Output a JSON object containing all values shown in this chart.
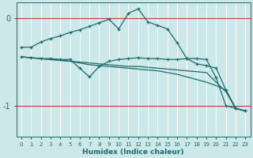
{
  "xlabel": "Humidex (Indice chaleur)",
  "xlim": [
    -0.5,
    23.5
  ],
  "ylim": [
    -1.35,
    0.18
  ],
  "background_color": "#cce8e8",
  "grid_color": "#ffffff",
  "line_color": "#1a6b6b",
  "red_line_color": "#cc3333",
  "yticks": [
    0,
    -1
  ],
  "xticks": [
    0,
    1,
    2,
    3,
    4,
    5,
    6,
    7,
    8,
    9,
    10,
    11,
    12,
    13,
    14,
    15,
    16,
    17,
    18,
    19,
    20,
    21,
    22,
    23
  ],
  "line1_x": [
    0,
    1,
    2,
    3,
    4,
    5,
    6,
    7,
    8,
    9,
    10,
    11,
    12,
    13,
    14,
    15,
    16,
    17,
    18,
    19,
    20,
    21,
    22,
    23
  ],
  "line1_y": [
    -0.33,
    -0.33,
    -0.27,
    -0.23,
    -0.2,
    -0.16,
    -0.13,
    -0.09,
    -0.05,
    -0.01,
    -0.12,
    0.06,
    0.11,
    -0.04,
    -0.08,
    -0.12,
    -0.28,
    -0.46,
    -0.52,
    -0.54,
    -0.57,
    -0.82,
    -1.03,
    -1.06
  ],
  "line2_x": [
    0,
    1,
    2,
    3,
    4,
    5,
    6,
    7,
    8,
    9,
    10,
    11,
    12,
    13,
    14,
    15,
    16,
    17,
    18,
    19,
    20,
    21,
    22,
    23
  ],
  "line2_y": [
    -0.44,
    -0.45,
    -0.46,
    -0.46,
    -0.47,
    -0.47,
    -0.57,
    -0.67,
    -0.55,
    -0.49,
    -0.47,
    -0.46,
    -0.45,
    -0.46,
    -0.46,
    -0.47,
    -0.47,
    -0.46,
    -0.46,
    -0.47,
    -0.68,
    -1.0,
    -1.03,
    -1.06
  ],
  "line3_x": [
    0,
    1,
    2,
    3,
    4,
    5,
    6,
    7,
    8,
    9,
    10,
    11,
    12,
    13,
    14,
    15,
    16,
    17,
    18,
    19,
    20,
    21,
    22,
    23
  ],
  "line3_y": [
    -0.44,
    -0.45,
    -0.46,
    -0.47,
    -0.48,
    -0.49,
    -0.5,
    -0.51,
    -0.52,
    -0.53,
    -0.54,
    -0.55,
    -0.55,
    -0.56,
    -0.57,
    -0.58,
    -0.59,
    -0.6,
    -0.61,
    -0.62,
    -0.73,
    -0.84,
    -1.03,
    -1.06
  ],
  "line4_x": [
    0,
    1,
    2,
    3,
    4,
    5,
    6,
    7,
    8,
    9,
    10,
    11,
    12,
    13,
    14,
    15,
    16,
    17,
    18,
    19,
    20,
    21,
    22,
    23
  ],
  "line4_y": [
    -0.44,
    -0.45,
    -0.46,
    -0.47,
    -0.48,
    -0.49,
    -0.51,
    -0.53,
    -0.54,
    -0.55,
    -0.56,
    -0.57,
    -0.58,
    -0.59,
    -0.6,
    -0.62,
    -0.64,
    -0.67,
    -0.7,
    -0.73,
    -0.77,
    -0.82,
    -1.03,
    -1.06
  ]
}
